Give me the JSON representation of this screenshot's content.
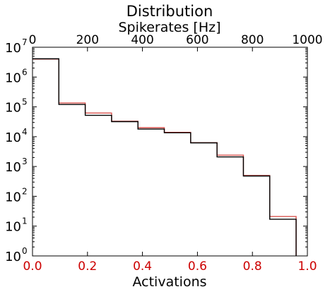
{
  "chart_data": {
    "type": "line",
    "drawstyle": "steps",
    "title": "Distribution",
    "xlabel": "Activations",
    "xlabel_top": "Spikerates [Hz]",
    "xlim": [
      0.0,
      1.0
    ],
    "xlim_top": [
      0,
      1000
    ],
    "xticks": [
      "0.0",
      "0.2",
      "0.4",
      "0.6",
      "0.8",
      "1.0"
    ],
    "xticks_top": [
      "0",
      "200",
      "400",
      "600",
      "800",
      "1000"
    ],
    "yscale": "log",
    "ylim": [
      1,
      10000000
    ],
    "yticks": [
      {
        "base": "10",
        "exp": "0"
      },
      {
        "base": "10",
        "exp": "1"
      },
      {
        "base": "10",
        "exp": "2"
      },
      {
        "base": "10",
        "exp": "3"
      },
      {
        "base": "10",
        "exp": "4"
      },
      {
        "base": "10",
        "exp": "5"
      },
      {
        "base": "10",
        "exp": "6"
      },
      {
        "base": "10",
        "exp": "7"
      }
    ],
    "bottom_axis_color": "#cc0000",
    "bin_edges": [
      0.0,
      0.0959,
      0.1918,
      0.2877,
      0.3836,
      0.4795,
      0.5754,
      0.6713,
      0.7672,
      0.8631,
      0.959
    ],
    "series": [
      {
        "color": "#000000",
        "values": [
          4100000,
          120000,
          52000,
          32000,
          18000,
          13500,
          6200,
          2100,
          480,
          17
        ]
      },
      {
        "color": "#d9534f",
        "values": [
          4000000,
          135000,
          62000,
          33000,
          20000,
          14000,
          6300,
          2400,
          500,
          21
        ]
      }
    ]
  }
}
